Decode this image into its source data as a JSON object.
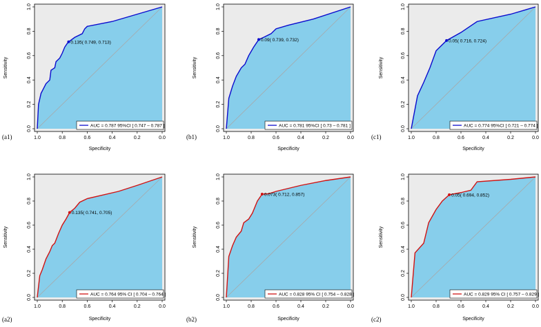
{
  "figure": {
    "x_ticks": [
      "1.0",
      "0.8",
      "0.6",
      "0.4",
      "0.2",
      "0.0"
    ],
    "y_ticks": [
      "0.0",
      "0.2",
      "0.4",
      "0.6",
      "0.8",
      "1.0"
    ],
    "colors": {
      "fill": "#87CEEB",
      "background": "#EBEBEB",
      "diagonal": "#A8A8A8",
      "blue": "#0A0ACD",
      "red": "#D01212",
      "frame": "#000000"
    }
  },
  "chart_data": [
    {
      "panel_label": "(a1)",
      "type": "line",
      "title": "",
      "xlabel": "Specificity",
      "ylabel": "Sensitivity",
      "xlim": [
        1.0,
        0.0
      ],
      "ylim": [
        0.0,
        1.0
      ],
      "series_color": "blue",
      "points": [
        [
          1.0,
          0.0
        ],
        [
          0.99,
          0.2
        ],
        [
          0.97,
          0.29
        ],
        [
          0.93,
          0.37
        ],
        [
          0.9,
          0.4
        ],
        [
          0.89,
          0.48
        ],
        [
          0.86,
          0.5
        ],
        [
          0.85,
          0.55
        ],
        [
          0.82,
          0.58
        ],
        [
          0.8,
          0.62
        ],
        [
          0.78,
          0.67
        ],
        [
          0.76,
          0.7
        ],
        [
          0.749,
          0.713
        ],
        [
          0.7,
          0.75
        ],
        [
          0.64,
          0.78
        ],
        [
          0.62,
          0.82
        ],
        [
          0.6,
          0.84
        ],
        [
          0.4,
          0.88
        ],
        [
          0.2,
          0.94
        ],
        [
          0.0,
          1.0
        ]
      ],
      "threshold_point": [
        0.749,
        0.713
      ],
      "annotation": "0.135( 0.749, 0.713)",
      "legend": "AUC = 0.787   95%CI [ 0.747 – 0.787 ]"
    },
    {
      "panel_label": "(b1)",
      "type": "line",
      "title": "",
      "xlabel": "Specificity",
      "ylabel": "Sensitivity",
      "xlim": [
        1.0,
        0.0
      ],
      "ylim": [
        0.0,
        1.0
      ],
      "series_color": "blue",
      "points": [
        [
          1.0,
          0.0
        ],
        [
          0.98,
          0.25
        ],
        [
          0.95,
          0.35
        ],
        [
          0.92,
          0.43
        ],
        [
          0.88,
          0.5
        ],
        [
          0.85,
          0.53
        ],
        [
          0.82,
          0.6
        ],
        [
          0.78,
          0.67
        ],
        [
          0.739,
          0.732
        ],
        [
          0.7,
          0.75
        ],
        [
          0.64,
          0.78
        ],
        [
          0.6,
          0.82
        ],
        [
          0.5,
          0.85
        ],
        [
          0.3,
          0.9
        ],
        [
          0.0,
          1.0
        ]
      ],
      "threshold_point": [
        0.739,
        0.732
      ],
      "annotation": "0.09( 0.739, 0.732)",
      "legend": "AUC = 0.781   95%CI [ 0.73 – 0.781 ]"
    },
    {
      "panel_label": "(c1)",
      "type": "line",
      "title": "",
      "xlabel": "Specificity",
      "ylabel": "Sensitivity",
      "xlim": [
        1.0,
        0.0
      ],
      "ylim": [
        0.0,
        1.0
      ],
      "series_color": "blue",
      "points": [
        [
          1.0,
          0.0
        ],
        [
          0.95,
          0.27
        ],
        [
          0.9,
          0.38
        ],
        [
          0.85,
          0.5
        ],
        [
          0.8,
          0.64
        ],
        [
          0.716,
          0.724
        ],
        [
          0.6,
          0.79
        ],
        [
          0.47,
          0.88
        ],
        [
          0.2,
          0.94
        ],
        [
          0.0,
          1.0
        ]
      ],
      "threshold_point": [
        0.716,
        0.724
      ],
      "annotation": "0.05( 0.716, 0.724)",
      "legend": "AUC = 0.774   95%CI [ 0.721 – 0.774 ]"
    },
    {
      "panel_label": "(a2)",
      "type": "line",
      "title": "",
      "xlabel": "Specificity",
      "ylabel": "Sensitivity",
      "xlim": [
        1.0,
        0.0
      ],
      "ylim": [
        0.0,
        1.0
      ],
      "series_color": "red",
      "points": [
        [
          1.0,
          0.0
        ],
        [
          0.98,
          0.18
        ],
        [
          0.96,
          0.23
        ],
        [
          0.93,
          0.32
        ],
        [
          0.9,
          0.38
        ],
        [
          0.88,
          0.43
        ],
        [
          0.86,
          0.45
        ],
        [
          0.83,
          0.53
        ],
        [
          0.8,
          0.6
        ],
        [
          0.77,
          0.65
        ],
        [
          0.741,
          0.705
        ],
        [
          0.7,
          0.74
        ],
        [
          0.66,
          0.79
        ],
        [
          0.6,
          0.82
        ],
        [
          0.35,
          0.88
        ],
        [
          0.2,
          0.93
        ],
        [
          0.0,
          1.0
        ]
      ],
      "threshold_point": [
        0.741,
        0.705
      ],
      "annotation": "0.135( 0.741, 0.705)",
      "legend": "AUC = 0.764 95% CI [ 0.704 – 0.764 ]"
    },
    {
      "panel_label": "(b2)",
      "type": "line",
      "title": "",
      "xlabel": "Specificity",
      "ylabel": "Sensitivity",
      "xlim": [
        1.0,
        0.0
      ],
      "ylim": [
        0.0,
        1.0
      ],
      "series_color": "red",
      "points": [
        [
          1.0,
          0.0
        ],
        [
          0.98,
          0.34
        ],
        [
          0.95,
          0.43
        ],
        [
          0.92,
          0.5
        ],
        [
          0.88,
          0.55
        ],
        [
          0.86,
          0.62
        ],
        [
          0.82,
          0.65
        ],
        [
          0.79,
          0.7
        ],
        [
          0.75,
          0.8
        ],
        [
          0.712,
          0.857
        ],
        [
          0.66,
          0.86
        ],
        [
          0.6,
          0.88
        ],
        [
          0.4,
          0.93
        ],
        [
          0.2,
          0.97
        ],
        [
          0.0,
          1.0
        ]
      ],
      "threshold_point": [
        0.712,
        0.857
      ],
      "annotation": "0.073( 0.712, 0.857)",
      "legend": "AUC = 0.828 95% CI [ 0.754 – 0.828 ]"
    },
    {
      "panel_label": "(c2)",
      "type": "line",
      "title": "",
      "xlabel": "Specificity",
      "ylabel": "Sensitivity",
      "xlim": [
        1.0,
        0.0
      ],
      "ylim": [
        0.0,
        1.0
      ],
      "series_color": "red",
      "points": [
        [
          1.0,
          0.0
        ],
        [
          0.97,
          0.37
        ],
        [
          0.9,
          0.45
        ],
        [
          0.86,
          0.62
        ],
        [
          0.8,
          0.73
        ],
        [
          0.75,
          0.8
        ],
        [
          0.694,
          0.852
        ],
        [
          0.6,
          0.87
        ],
        [
          0.52,
          0.89
        ],
        [
          0.47,
          0.96
        ],
        [
          0.2,
          0.98
        ],
        [
          0.0,
          1.0
        ]
      ],
      "threshold_point": [
        0.694,
        0.852
      ],
      "annotation": "0.05( 0.694, 0.852)",
      "legend": "AUC = 0.829 95% CI [ 0.757 – 0.829 ]"
    }
  ]
}
